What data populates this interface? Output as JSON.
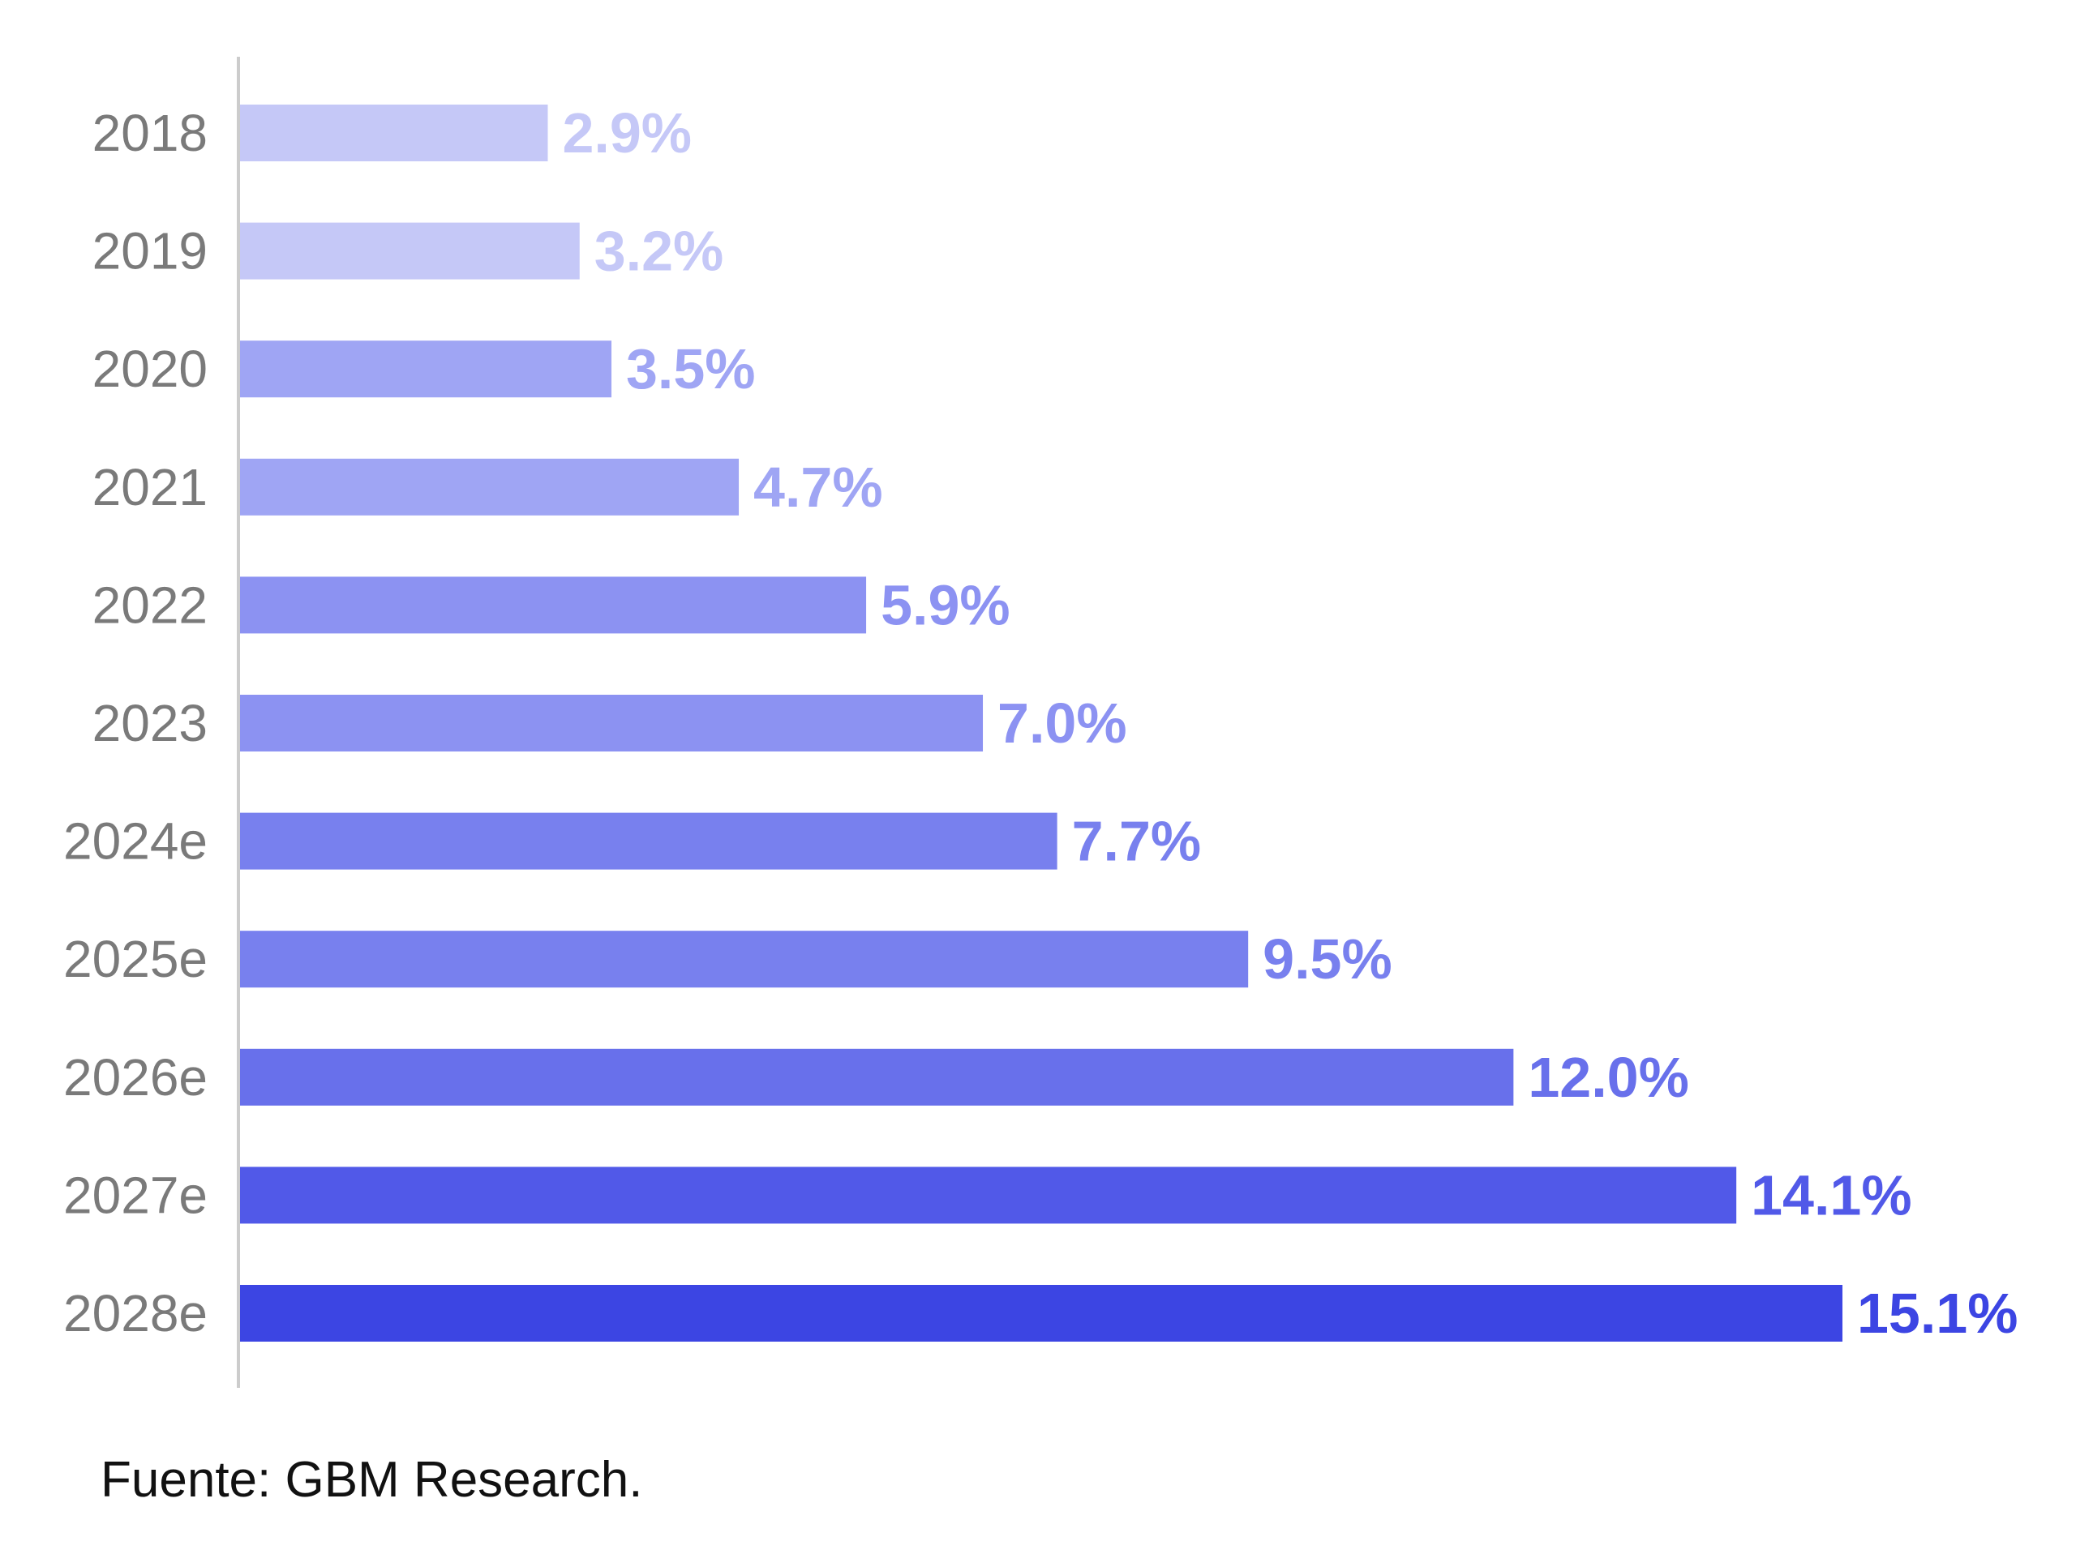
{
  "chart_data": {
    "type": "bar",
    "orientation": "horizontal",
    "categories": [
      "2018",
      "2019",
      "2020",
      "2021",
      "2022",
      "2023",
      "2024e",
      "2025e",
      "2026e",
      "2027e",
      "2028e"
    ],
    "values": [
      2.9,
      3.2,
      3.5,
      4.7,
      5.9,
      7.0,
      7.7,
      9.5,
      12.0,
      14.1,
      15.1
    ],
    "value_labels": [
      "2.9%",
      "3.2%",
      "3.5%",
      "4.7%",
      "5.9%",
      "7.0%",
      "7.7%",
      "9.5%",
      "12.0%",
      "14.1%",
      "15.1%"
    ],
    "colors": [
      "#c5c8f7",
      "#c5c8f7",
      "#9fa5f4",
      "#9fa5f4",
      "#8c92f2",
      "#8c92f2",
      "#7880ee",
      "#7880ee",
      "#6870eb",
      "#5159e8",
      "#3c45e3"
    ],
    "xlim": [
      0,
      16
    ],
    "grid": false,
    "legend": "none"
  },
  "footer": {
    "source": "Fuente: GBM Research."
  }
}
